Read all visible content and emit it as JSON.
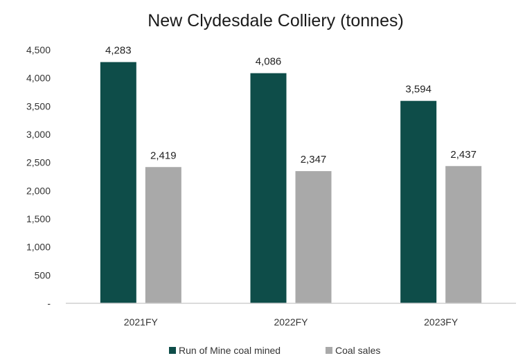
{
  "chart_data": {
    "type": "bar",
    "title": "New Clydesdale Colliery (tonnes)",
    "categories": [
      "2021FY",
      "2022FY",
      "2023FY"
    ],
    "series": [
      {
        "name": "Run of Mine coal mined",
        "values": [
          4283,
          4086,
          3594
        ],
        "labels": [
          "4,283",
          "4,086",
          "3,594"
        ],
        "color": "#0e4d49"
      },
      {
        "name": "Coal sales",
        "values": [
          2419,
          2347,
          2437
        ],
        "labels": [
          "2,419",
          "2,347",
          "2,437"
        ],
        "color": "#a9a9a9"
      }
    ],
    "yticks": [
      "-",
      "500",
      "1,000",
      "1,500",
      "2,000",
      "2,500",
      "3,000",
      "3,500",
      "4,000",
      "4,500"
    ],
    "ylim": [
      0,
      4500
    ],
    "grid": false,
    "legend": "bottom",
    "axis_color": "#cfcfcf"
  }
}
